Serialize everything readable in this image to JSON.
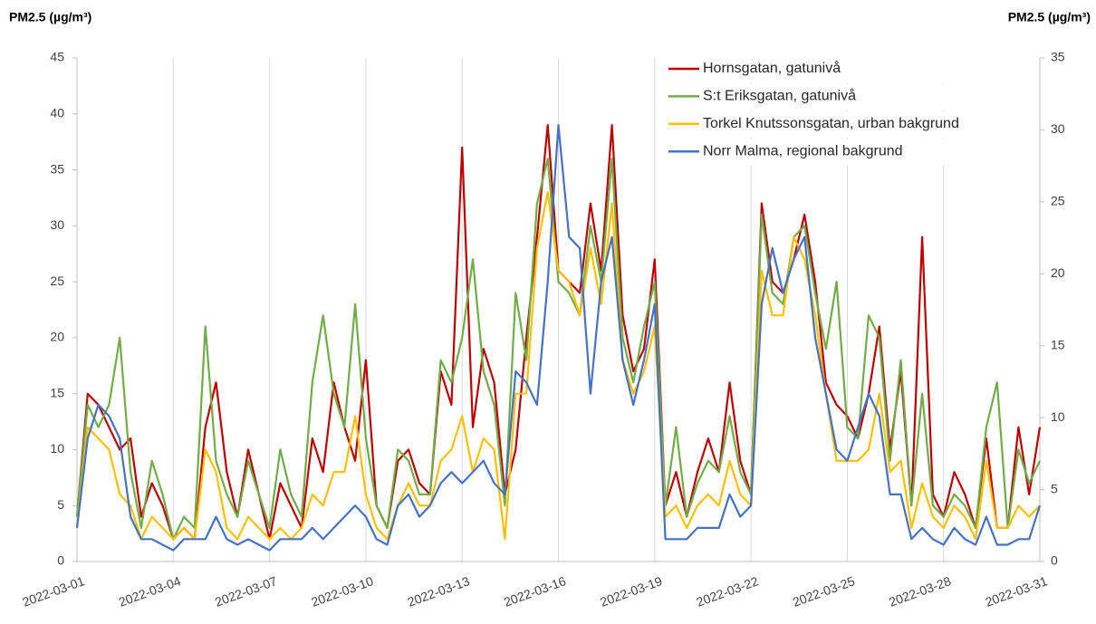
{
  "chart_data": {
    "type": "line",
    "y_label": "PM2.5 (µg/m³)",
    "y2_label": "PM2.5 (µg/m³)",
    "x": [
      "2022-03-01 00:00",
      "2022-03-01 08:00",
      "2022-03-01 16:00",
      "2022-03-02 00:00",
      "2022-03-02 08:00",
      "2022-03-02 16:00",
      "2022-03-03 00:00",
      "2022-03-03 08:00",
      "2022-03-03 16:00",
      "2022-03-04 00:00",
      "2022-03-04 08:00",
      "2022-03-04 16:00",
      "2022-03-05 00:00",
      "2022-03-05 08:00",
      "2022-03-05 16:00",
      "2022-03-06 00:00",
      "2022-03-06 08:00",
      "2022-03-06 16:00",
      "2022-03-07 00:00",
      "2022-03-07 08:00",
      "2022-03-07 16:00",
      "2022-03-08 00:00",
      "2022-03-08 08:00",
      "2022-03-08 16:00",
      "2022-03-09 00:00",
      "2022-03-09 08:00",
      "2022-03-09 16:00",
      "2022-03-10 00:00",
      "2022-03-10 08:00",
      "2022-03-10 16:00",
      "2022-03-11 00:00",
      "2022-03-11 08:00",
      "2022-03-11 16:00",
      "2022-03-12 00:00",
      "2022-03-12 08:00",
      "2022-03-12 16:00",
      "2022-03-13 00:00",
      "2022-03-13 08:00",
      "2022-03-13 16:00",
      "2022-03-14 00:00",
      "2022-03-14 08:00",
      "2022-03-14 16:00",
      "2022-03-15 00:00",
      "2022-03-15 08:00",
      "2022-03-15 16:00",
      "2022-03-16 00:00",
      "2022-03-16 08:00",
      "2022-03-16 16:00",
      "2022-03-17 00:00",
      "2022-03-17 08:00",
      "2022-03-17 16:00",
      "2022-03-18 00:00",
      "2022-03-18 08:00",
      "2022-03-18 16:00",
      "2022-03-19 00:00",
      "2022-03-19 08:00",
      "2022-03-19 16:00",
      "2022-03-20 00:00",
      "2022-03-20 08:00",
      "2022-03-20 16:00",
      "2022-03-21 00:00",
      "2022-03-21 08:00",
      "2022-03-21 16:00",
      "2022-03-22 00:00",
      "2022-03-22 08:00",
      "2022-03-22 16:00",
      "2022-03-23 00:00",
      "2022-03-23 08:00",
      "2022-03-23 16:00",
      "2022-03-24 00:00",
      "2022-03-24 08:00",
      "2022-03-24 16:00",
      "2022-03-25 00:00",
      "2022-03-25 08:00",
      "2022-03-25 16:00",
      "2022-03-26 00:00",
      "2022-03-26 08:00",
      "2022-03-26 16:00",
      "2022-03-27 00:00",
      "2022-03-27 08:00",
      "2022-03-27 16:00",
      "2022-03-28 00:00",
      "2022-03-28 08:00",
      "2022-03-28 16:00",
      "2022-03-29 00:00",
      "2022-03-29 08:00",
      "2022-03-29 16:00",
      "2022-03-30 00:00",
      "2022-03-30 08:00",
      "2022-03-30 16:00",
      "2022-03-31 00:00"
    ],
    "series": [
      {
        "name": "Hornsgatan, gatunivå",
        "color": "#c00000",
        "values": [
          4,
          15,
          14,
          12,
          10,
          11,
          4,
          7,
          5,
          2,
          3,
          2,
          12,
          16,
          8,
          4,
          10,
          6,
          2,
          7,
          5,
          3,
          11,
          8,
          16,
          12,
          9,
          18,
          5,
          3,
          9,
          10,
          7,
          6,
          17,
          14,
          37,
          12,
          19,
          16,
          6,
          10,
          20,
          29,
          39,
          26,
          25,
          24,
          32,
          26,
          39,
          22,
          17,
          19,
          27,
          5,
          8,
          4,
          8,
          11,
          8,
          16,
          9,
          6,
          32,
          25,
          24,
          27,
          31,
          25,
          16,
          14,
          13,
          11,
          15,
          21,
          10,
          17,
          5,
          29,
          6,
          4,
          8,
          6,
          3,
          11,
          3,
          3,
          12,
          6,
          12
        ]
      },
      {
        "name": "S:t Eriksgatan, gatunivå",
        "color": "#70ad47",
        "values": [
          4,
          14,
          12,
          14,
          20,
          8,
          3,
          9,
          6,
          2,
          4,
          3,
          21,
          9,
          6,
          4,
          9,
          6,
          3,
          10,
          6,
          4,
          16,
          22,
          15,
          12,
          23,
          11,
          5,
          3,
          10,
          9,
          6,
          6,
          18,
          16,
          20,
          27,
          17,
          14,
          5,
          24,
          18,
          32,
          36,
          25,
          24,
          22,
          30,
          25,
          36,
          20,
          16,
          21,
          25,
          5,
          12,
          4,
          7,
          9,
          8,
          13,
          8,
          6,
          31,
          24,
          23,
          29,
          30,
          24,
          19,
          25,
          12,
          11,
          22,
          20,
          9,
          18,
          5,
          15,
          5,
          4,
          6,
          5,
          3,
          12,
          16,
          3,
          10,
          7,
          9
        ]
      },
      {
        "name": "Torkel Knutssonsgatan, urban bakgrund",
        "color": "#ffc000",
        "values": [
          3,
          12,
          11,
          10,
          6,
          5,
          2,
          4,
          3,
          2,
          3,
          2,
          10,
          8,
          3,
          2,
          4,
          3,
          2,
          3,
          2,
          3,
          6,
          5,
          8,
          8,
          13,
          6,
          3,
          2,
          5,
          7,
          5,
          5,
          9,
          10,
          13,
          8,
          11,
          10,
          2,
          15,
          15,
          28,
          33,
          26,
          25,
          22,
          28,
          23,
          32,
          18,
          15,
          17,
          21,
          4,
          5,
          3,
          5,
          6,
          5,
          9,
          6,
          5,
          26,
          22,
          22,
          29,
          27,
          22,
          15,
          9,
          9,
          9,
          10,
          15,
          8,
          9,
          3,
          7,
          4,
          3,
          5,
          4,
          2,
          9,
          3,
          3,
          5,
          4,
          5
        ]
      },
      {
        "name": "Norr Malma, regional bakgrund",
        "color": "#4472c4",
        "values": [
          3,
          11,
          14,
          13,
          11,
          4,
          2,
          2,
          1.5,
          1,
          2,
          2,
          2,
          4,
          2,
          1.5,
          2,
          1.5,
          1,
          2,
          2,
          2,
          3,
          2,
          3,
          4,
          5,
          4,
          2,
          1.5,
          5,
          6,
          4,
          5,
          7,
          8,
          7,
          8,
          9,
          7,
          6,
          17,
          16,
          14,
          25,
          39,
          29,
          28,
          15,
          25,
          29,
          18,
          14,
          18,
          23,
          2,
          2,
          2,
          3,
          3,
          3,
          6,
          4,
          5,
          23,
          28,
          24,
          27,
          29,
          20,
          15,
          10,
          9,
          12,
          15,
          13,
          6,
          6,
          2,
          3,
          2,
          1.5,
          3,
          2,
          1.5,
          4,
          1.5,
          1.5,
          2,
          2,
          5
        ]
      }
    ],
    "xlim": [
      "2022-03-01",
      "2022-03-31"
    ],
    "xticks": [
      "2022-03-01",
      "2022-03-04",
      "2022-03-07",
      "2022-03-10",
      "2022-03-13",
      "2022-03-16",
      "2022-03-19",
      "2022-03-22",
      "2022-03-25",
      "2022-03-28",
      "2022-03-31"
    ],
    "ylim": [
      0,
      45
    ],
    "yticks": [
      0,
      5,
      10,
      15,
      20,
      25,
      30,
      35,
      40,
      45
    ],
    "y2lim": [
      0,
      35
    ],
    "y2ticks": [
      0,
      5,
      10,
      15,
      20,
      25,
      30,
      35
    ],
    "grid": "x",
    "legend": "upper right"
  }
}
